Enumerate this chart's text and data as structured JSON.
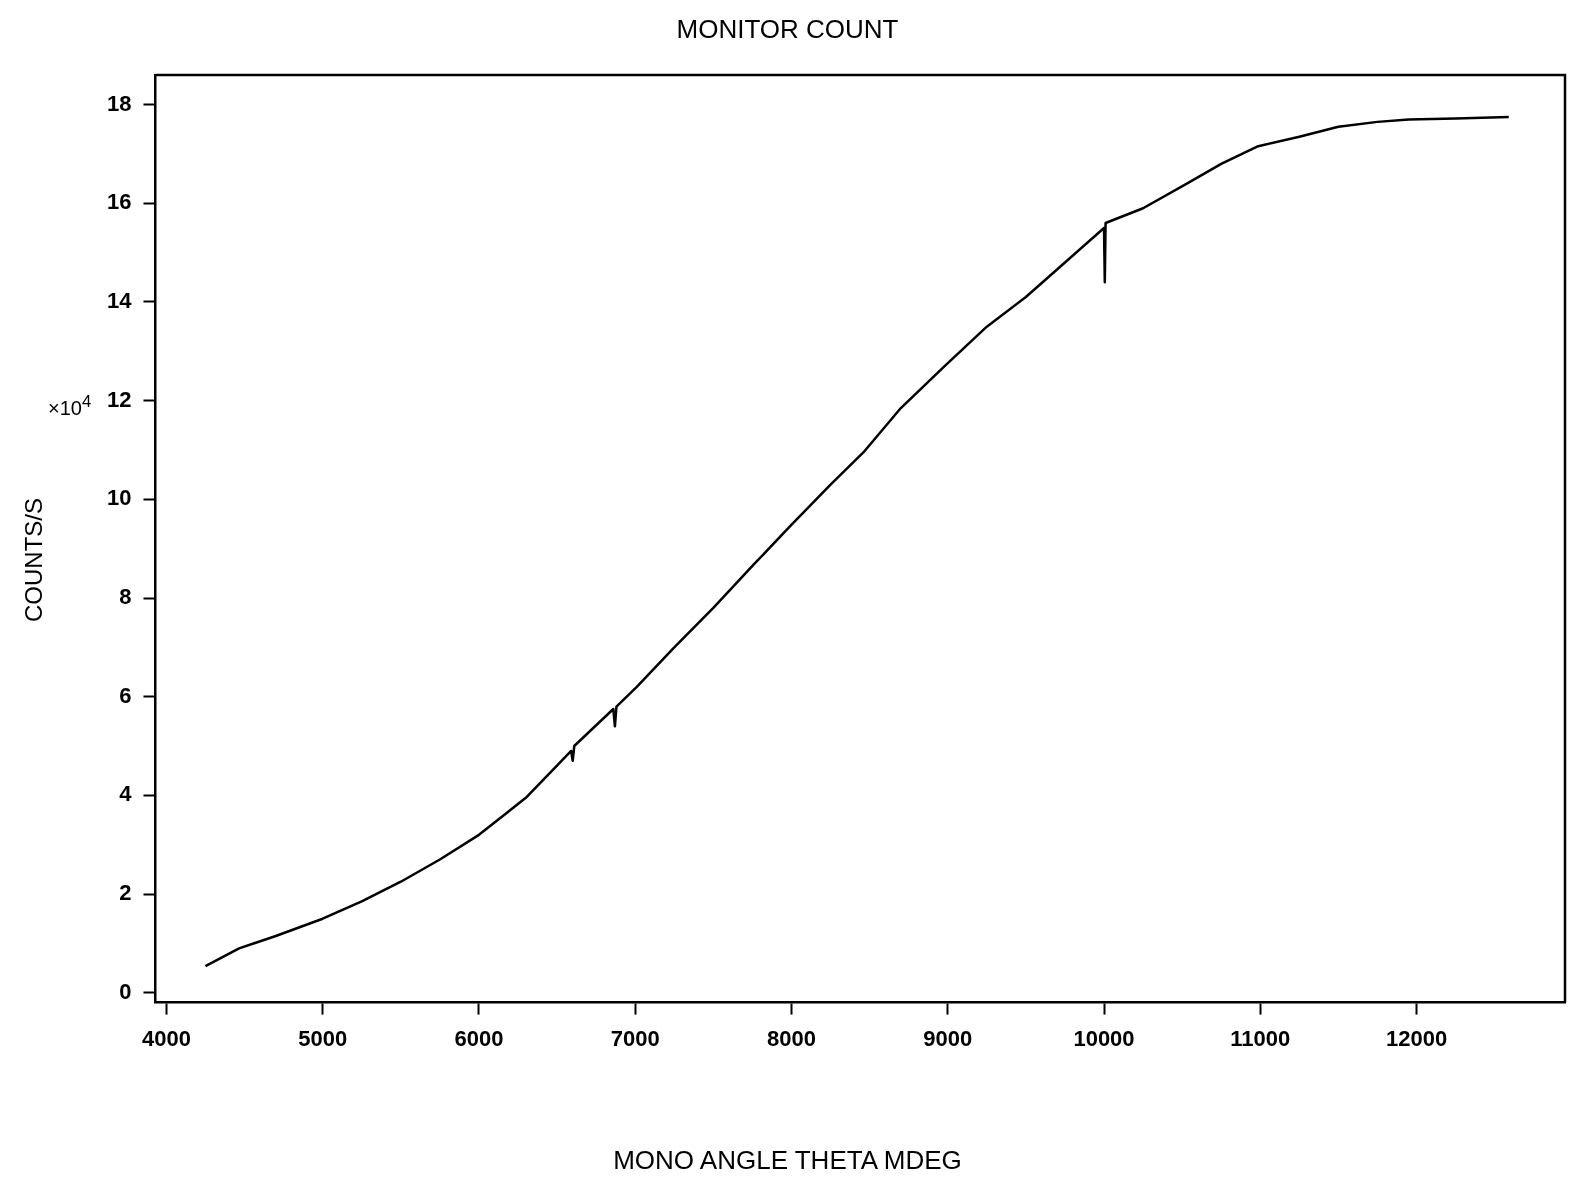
{
  "chart_data": {
    "type": "line",
    "title": "MONITOR COUNT",
    "xlabel": "MONO ANGLE THETA MDEG",
    "ylabel": "COUNTS/S",
    "annotations": [
      "×10$^{4}$"
    ],
    "xlim": [
      3930,
      12950
    ],
    "xticks": [
      4000,
      5000,
      6000,
      7000,
      8000,
      9000,
      10000,
      11000,
      12000
    ],
    "ylim": [
      -0.2,
      18.6
    ],
    "yticks": [
      0,
      2,
      4,
      6,
      8,
      10,
      12,
      14,
      16,
      18
    ],
    "grid": false,
    "legend": false,
    "marker": "none",
    "line_style": "solid",
    "series": [
      {
        "color": "#000000",
        "x": [
          4250,
          4465,
          4700,
          5000,
          5250,
          5500,
          5750,
          6000,
          6300,
          6590,
          6600,
          6610,
          6860,
          6870,
          6880,
          7010,
          7250,
          7500,
          7750,
          7990,
          8250,
          8460,
          8700,
          8980,
          9250,
          9500,
          9750,
          10000,
          10005,
          10010,
          10250,
          10530,
          10750,
          10980,
          11250,
          11500,
          11750,
          11950,
          12250,
          12590
        ],
        "values": [
          0.54,
          0.9,
          1.15,
          1.5,
          1.85,
          2.25,
          2.7,
          3.2,
          3.95,
          4.9,
          4.7,
          5.0,
          5.75,
          5.4,
          5.8,
          6.2,
          7.0,
          7.8,
          8.65,
          9.45,
          10.3,
          10.95,
          11.85,
          12.7,
          13.5,
          14.1,
          14.8,
          15.5,
          14.4,
          15.6,
          15.9,
          16.4,
          16.8,
          17.15,
          17.35,
          17.55,
          17.65,
          17.7,
          17.72,
          17.75
        ]
      }
    ]
  }
}
